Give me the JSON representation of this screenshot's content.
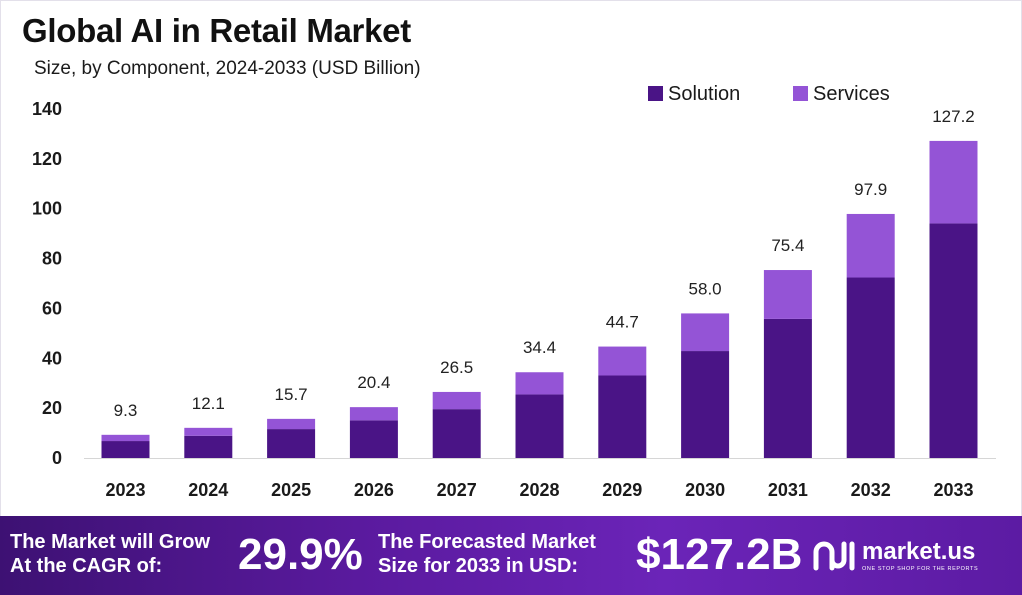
{
  "chart_data": {
    "type": "bar",
    "stacked": true,
    "title": "Global AI in Retail Market",
    "subtitle": "Size, by Component, 2024-2033 (USD Billion)",
    "categories": [
      "2023",
      "2024",
      "2025",
      "2026",
      "2027",
      "2028",
      "2029",
      "2030",
      "2031",
      "2032",
      "2033"
    ],
    "series": [
      {
        "name": "Solution",
        "color": "#4a1486",
        "values": [
          6.8,
          8.9,
          11.6,
          15.1,
          19.6,
          25.5,
          33.1,
          42.9,
          55.8,
          72.4,
          94.1
        ]
      },
      {
        "name": "Services",
        "color": "#9454d6",
        "values": [
          2.5,
          3.2,
          4.1,
          5.3,
          6.9,
          8.9,
          11.6,
          15.1,
          19.6,
          25.5,
          33.1
        ]
      }
    ],
    "totals": [
      "9.3",
      "12.1",
      "15.7",
      "20.4",
      "26.5",
      "34.4",
      "44.7",
      "58.0",
      "75.4",
      "97.9",
      "127.2"
    ],
    "yticks": [
      "0",
      "20",
      "40",
      "60",
      "80",
      "100",
      "120",
      "140"
    ],
    "ylim": [
      0,
      140
    ],
    "grid": false,
    "legend": "top-right"
  },
  "footer": {
    "cagr_line1": "The Market will Grow",
    "cagr_line2": "At the CAGR of:",
    "cagr_value": "29.9%",
    "forecast_line1": "The Forecasted Market",
    "forecast_line2": "Size for 2033 in USD:",
    "forecast_value": "$127.2B",
    "brand_name": "market.us",
    "brand_tagline": "ONE STOP SHOP FOR THE REPORTS"
  }
}
